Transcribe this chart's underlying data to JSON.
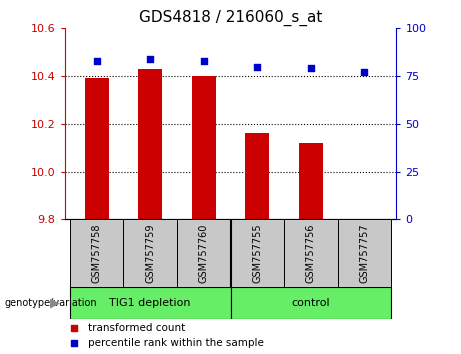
{
  "title": "GDS4818 / 216060_s_at",
  "samples": [
    "GSM757758",
    "GSM757759",
    "GSM757760",
    "GSM757755",
    "GSM757756",
    "GSM757757"
  ],
  "bar_values": [
    10.39,
    10.43,
    10.4,
    10.16,
    10.12,
    9.8
  ],
  "percentile_values": [
    83,
    84,
    83,
    80,
    79,
    77
  ],
  "group1_label": "TIG1 depletion",
  "group2_label": "control",
  "group1_indices": [
    0,
    1,
    2
  ],
  "group2_indices": [
    3,
    4,
    5
  ],
  "ylim_left": [
    9.8,
    10.6
  ],
  "ylim_right": [
    0,
    100
  ],
  "yticks_left": [
    9.8,
    10.0,
    10.2,
    10.4,
    10.6
  ],
  "yticks_right": [
    0,
    25,
    50,
    75,
    100
  ],
  "bar_color": "#CC0000",
  "percentile_color": "#0000CC",
  "bar_bottom": 9.8,
  "legend_bar_label": "transformed count",
  "legend_pct_label": "percentile rank within the sample",
  "genotype_label": "genotype/variation",
  "bg_color_plot": "#FFFFFF",
  "bg_color_xtick": "#C8C8C8",
  "bg_color_group": "#66EE66",
  "title_fontsize": 11,
  "tick_fontsize": 8,
  "axis_label_color_left": "#CC0000",
  "axis_label_color_right": "#0000CC",
  "dotted_lines": [
    10.0,
    10.2,
    10.4
  ]
}
